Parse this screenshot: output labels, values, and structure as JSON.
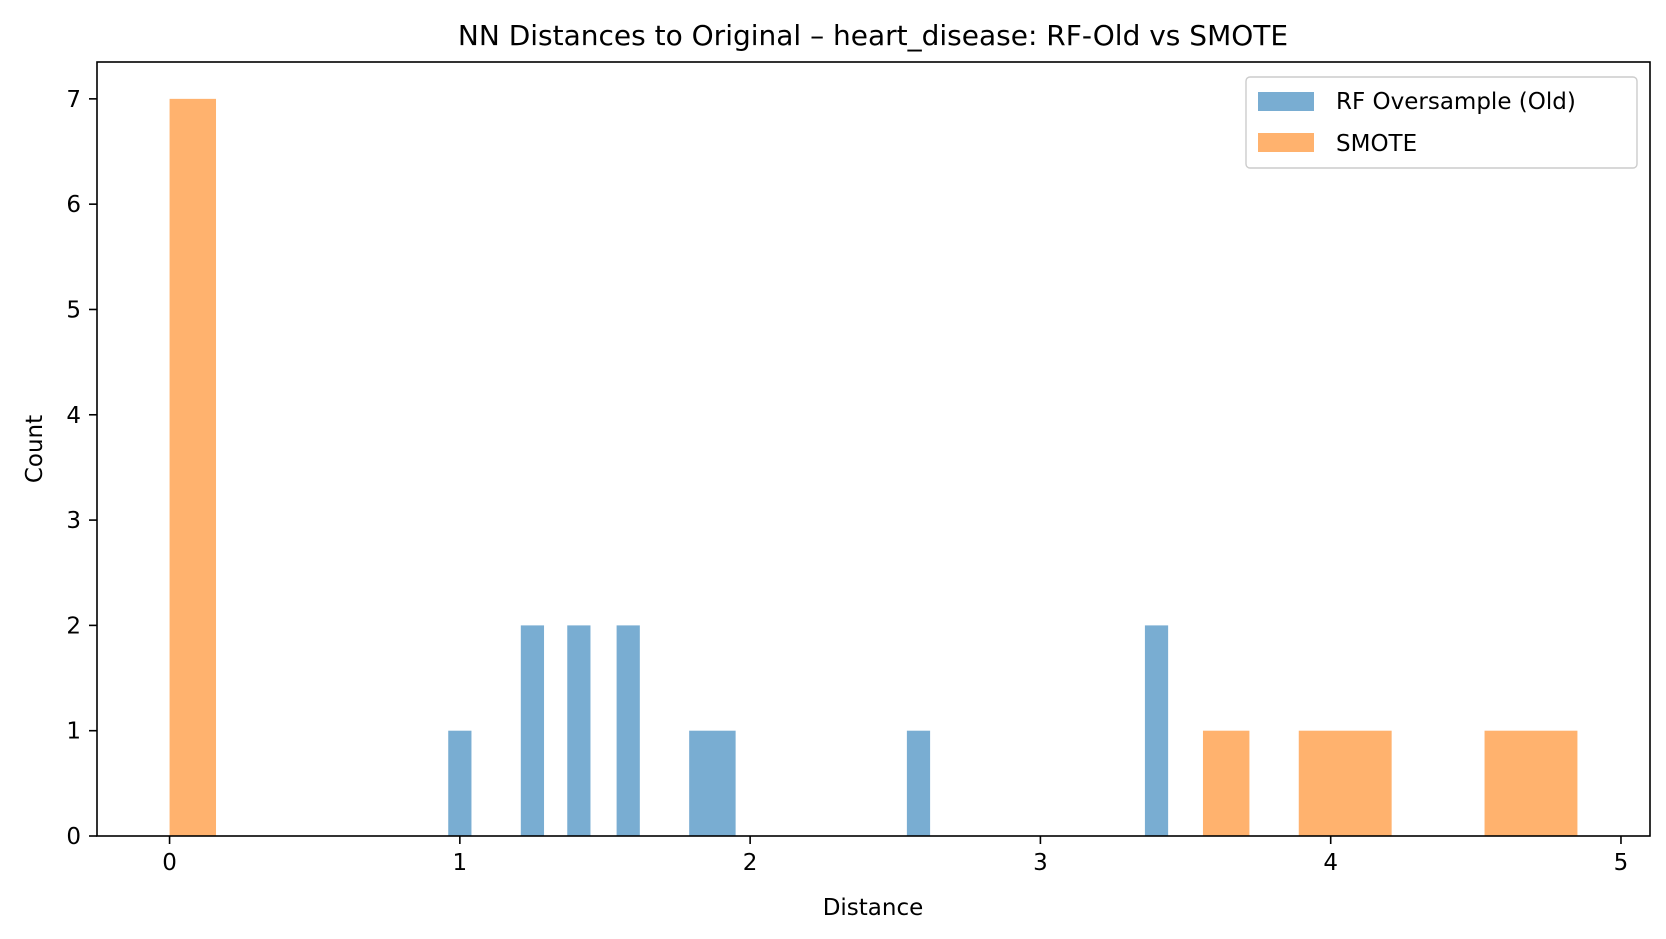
{
  "chart_data": {
    "type": "bar",
    "title": "NN Distances to Original – heart_disease: RF-Old vs SMOTE",
    "xlabel": "Distance",
    "ylabel": "Count",
    "xlim": [
      -0.25,
      5.1
    ],
    "ylim": [
      0,
      7.35
    ],
    "xticks": [
      0,
      1,
      2,
      3,
      4,
      5
    ],
    "yticks": [
      0,
      1,
      2,
      3,
      4,
      5,
      6,
      7
    ],
    "grid": false,
    "legend_position": "top-right",
    "series": [
      {
        "name": "RF Oversample (Old)",
        "color": "#1f77b4",
        "opacity": 0.6,
        "bins": [
          {
            "x0": 0.96,
            "x1": 1.04,
            "count": 1
          },
          {
            "x0": 1.21,
            "x1": 1.29,
            "count": 2
          },
          {
            "x0": 1.37,
            "x1": 1.45,
            "count": 2
          },
          {
            "x0": 1.54,
            "x1": 1.62,
            "count": 2
          },
          {
            "x0": 1.79,
            "x1": 1.95,
            "count": 1
          },
          {
            "x0": 2.54,
            "x1": 2.62,
            "count": 1
          },
          {
            "x0": 3.36,
            "x1": 3.44,
            "count": 2
          }
        ]
      },
      {
        "name": "SMOTE",
        "color": "#ff7f0e",
        "opacity": 0.6,
        "bins": [
          {
            "x0": 0.0,
            "x1": 0.16,
            "count": 7
          },
          {
            "x0": 3.56,
            "x1": 3.72,
            "count": 1
          },
          {
            "x0": 3.89,
            "x1": 4.21,
            "count": 1
          },
          {
            "x0": 4.53,
            "x1": 4.85,
            "count": 1
          }
        ]
      }
    ]
  }
}
